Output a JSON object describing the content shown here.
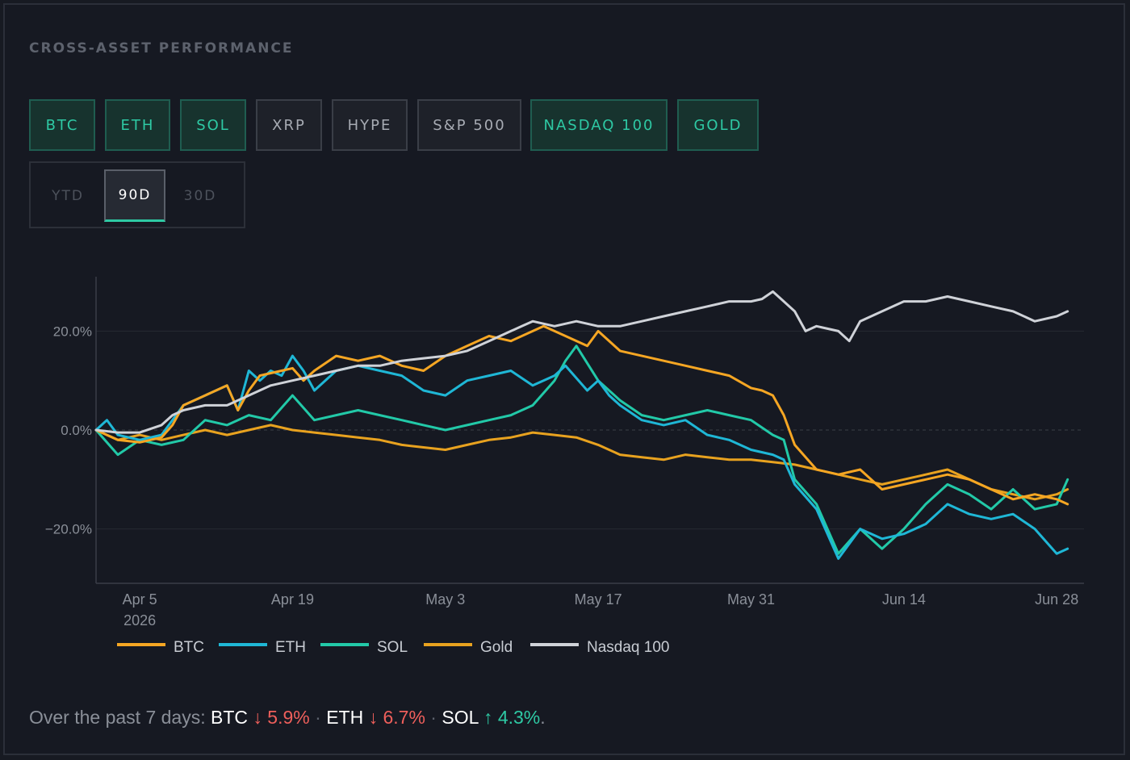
{
  "title": "CROSS-ASSET PERFORMANCE",
  "asset_toggles": [
    {
      "label": "BTC",
      "active": true
    },
    {
      "label": "ETH",
      "active": true
    },
    {
      "label": "SOL",
      "active": true
    },
    {
      "label": "XRP",
      "active": false
    },
    {
      "label": "HYPE",
      "active": false
    },
    {
      "label": "S&P 500",
      "active": false
    },
    {
      "label": "NASDAQ 100",
      "active": true
    },
    {
      "label": "GOLD",
      "active": true
    }
  ],
  "range_tabs": [
    {
      "label": "YTD",
      "active": false
    },
    {
      "label": "90D",
      "active": true
    },
    {
      "label": "30D",
      "active": false
    }
  ],
  "colors": {
    "accent": "#2ec9a4",
    "down": "#ee5f5b",
    "up": "#2ec9a4"
  },
  "chart_data": {
    "type": "line",
    "ylim": [
      -31,
      31
    ],
    "yticks": [
      20,
      0,
      -20
    ],
    "ytick_labels": [
      "20.0%",
      "0.0%",
      "−20.0%"
    ],
    "xtick_labels": [
      {
        "x": 4,
        "lines": [
          "Apr 5",
          "2026"
        ]
      },
      {
        "x": 18,
        "lines": [
          "Apr 19"
        ]
      },
      {
        "x": 32,
        "lines": [
          "May 3"
        ]
      },
      {
        "x": 46,
        "lines": [
          "May 17"
        ]
      },
      {
        "x": 60,
        "lines": [
          "May 31"
        ]
      },
      {
        "x": 74,
        "lines": [
          "Jun 14"
        ]
      },
      {
        "x": 88,
        "lines": [
          "Jun 28"
        ]
      }
    ],
    "x_domain": [
      0,
      90.5
    ],
    "x_unit": "days since Apr 1 2026",
    "series": [
      {
        "name": "BTC",
        "color": "#f5a623",
        "points": [
          [
            0,
            0
          ],
          [
            2,
            -2
          ],
          [
            4,
            -2.5
          ],
          [
            6,
            -1.5
          ],
          [
            7,
            1
          ],
          [
            8,
            5
          ],
          [
            10,
            7
          ],
          [
            12,
            9
          ],
          [
            13,
            4
          ],
          [
            14,
            8
          ],
          [
            15,
            11
          ],
          [
            16,
            11.5
          ],
          [
            17,
            12
          ],
          [
            18,
            12.5
          ],
          [
            19,
            10
          ],
          [
            20,
            12
          ],
          [
            22,
            15
          ],
          [
            24,
            14
          ],
          [
            26,
            15
          ],
          [
            28,
            13
          ],
          [
            30,
            12
          ],
          [
            32,
            15
          ],
          [
            34,
            17
          ],
          [
            36,
            19
          ],
          [
            38,
            18
          ],
          [
            40,
            20
          ],
          [
            41,
            21
          ],
          [
            43,
            19
          ],
          [
            45,
            17
          ],
          [
            46,
            20
          ],
          [
            48,
            16
          ],
          [
            50,
            15
          ],
          [
            52,
            14
          ],
          [
            54,
            13
          ],
          [
            56,
            12
          ],
          [
            58,
            11
          ],
          [
            60,
            8.5
          ],
          [
            61,
            8
          ],
          [
            62,
            7
          ],
          [
            63,
            3
          ],
          [
            64,
            -3
          ],
          [
            66,
            -8
          ],
          [
            68,
            -9
          ],
          [
            70,
            -8
          ],
          [
            72,
            -12
          ],
          [
            74,
            -11
          ],
          [
            76,
            -10
          ],
          [
            78,
            -9
          ],
          [
            80,
            -10
          ],
          [
            82,
            -12
          ],
          [
            84,
            -14
          ],
          [
            86,
            -13
          ],
          [
            88,
            -14
          ],
          [
            89,
            -15
          ]
        ]
      },
      {
        "name": "ETH",
        "color": "#1fb7d6",
        "points": [
          [
            0,
            0
          ],
          [
            1,
            2
          ],
          [
            2,
            -1
          ],
          [
            4,
            -2
          ],
          [
            6,
            -1
          ],
          [
            8,
            5
          ],
          [
            10,
            7
          ],
          [
            12,
            9
          ],
          [
            13,
            4
          ],
          [
            14,
            12
          ],
          [
            15,
            10
          ],
          [
            16,
            12
          ],
          [
            17,
            11
          ],
          [
            18,
            15
          ],
          [
            19,
            12
          ],
          [
            20,
            8
          ],
          [
            22,
            12
          ],
          [
            24,
            13
          ],
          [
            26,
            12
          ],
          [
            28,
            11
          ],
          [
            30,
            8
          ],
          [
            32,
            7
          ],
          [
            34,
            10
          ],
          [
            36,
            11
          ],
          [
            38,
            12
          ],
          [
            40,
            9
          ],
          [
            42,
            11
          ],
          [
            43,
            13
          ],
          [
            45,
            8
          ],
          [
            46,
            10
          ],
          [
            47,
            7
          ],
          [
            48,
            5
          ],
          [
            50,
            2
          ],
          [
            52,
            1
          ],
          [
            54,
            2
          ],
          [
            56,
            -1
          ],
          [
            58,
            -2
          ],
          [
            60,
            -4
          ],
          [
            62,
            -5
          ],
          [
            63,
            -6
          ],
          [
            64,
            -11
          ],
          [
            66,
            -16
          ],
          [
            68,
            -26
          ],
          [
            70,
            -20
          ],
          [
            72,
            -22
          ],
          [
            74,
            -21
          ],
          [
            76,
            -19
          ],
          [
            78,
            -15
          ],
          [
            80,
            -17
          ],
          [
            82,
            -18
          ],
          [
            84,
            -17
          ],
          [
            86,
            -20
          ],
          [
            88,
            -25
          ],
          [
            89,
            -24
          ]
        ]
      },
      {
        "name": "SOL",
        "color": "#22c9a8",
        "points": [
          [
            0,
            0
          ],
          [
            2,
            -5
          ],
          [
            4,
            -2
          ],
          [
            6,
            -3
          ],
          [
            8,
            -2
          ],
          [
            10,
            2
          ],
          [
            12,
            1
          ],
          [
            14,
            3
          ],
          [
            16,
            2
          ],
          [
            18,
            7
          ],
          [
            20,
            2
          ],
          [
            22,
            3
          ],
          [
            24,
            4
          ],
          [
            26,
            3
          ],
          [
            28,
            2
          ],
          [
            30,
            1
          ],
          [
            32,
            0
          ],
          [
            34,
            1
          ],
          [
            36,
            2
          ],
          [
            38,
            3
          ],
          [
            40,
            5
          ],
          [
            42,
            10
          ],
          [
            43,
            14
          ],
          [
            44,
            17
          ],
          [
            46,
            10
          ],
          [
            48,
            6
          ],
          [
            50,
            3
          ],
          [
            52,
            2
          ],
          [
            54,
            3
          ],
          [
            56,
            4
          ],
          [
            58,
            3
          ],
          [
            60,
            2
          ],
          [
            62,
            -1
          ],
          [
            63,
            -2
          ],
          [
            64,
            -10
          ],
          [
            66,
            -15
          ],
          [
            68,
            -25
          ],
          [
            70,
            -20
          ],
          [
            72,
            -24
          ],
          [
            74,
            -20
          ],
          [
            76,
            -15
          ],
          [
            78,
            -11
          ],
          [
            80,
            -13
          ],
          [
            82,
            -16
          ],
          [
            84,
            -12
          ],
          [
            86,
            -16
          ],
          [
            88,
            -15
          ],
          [
            89,
            -10
          ]
        ]
      },
      {
        "name": "Gold",
        "color": "#e8a21f",
        "points": [
          [
            0,
            0
          ],
          [
            2,
            -2
          ],
          [
            4,
            -1
          ],
          [
            6,
            -2
          ],
          [
            8,
            -1
          ],
          [
            10,
            0
          ],
          [
            12,
            -1
          ],
          [
            14,
            0
          ],
          [
            16,
            1
          ],
          [
            18,
            0
          ],
          [
            20,
            -0.5
          ],
          [
            22,
            -1
          ],
          [
            24,
            -1.5
          ],
          [
            26,
            -2
          ],
          [
            28,
            -3
          ],
          [
            30,
            -3.5
          ],
          [
            32,
            -4
          ],
          [
            34,
            -3
          ],
          [
            36,
            -2
          ],
          [
            38,
            -1.5
          ],
          [
            40,
            -0.5
          ],
          [
            42,
            -1
          ],
          [
            44,
            -1.5
          ],
          [
            46,
            -3
          ],
          [
            48,
            -5
          ],
          [
            50,
            -5.5
          ],
          [
            52,
            -6
          ],
          [
            54,
            -5
          ],
          [
            56,
            -5.5
          ],
          [
            58,
            -6
          ],
          [
            60,
            -6
          ],
          [
            62,
            -6.5
          ],
          [
            64,
            -7
          ],
          [
            66,
            -8
          ],
          [
            68,
            -9
          ],
          [
            70,
            -10
          ],
          [
            72,
            -11
          ],
          [
            74,
            -10
          ],
          [
            76,
            -9
          ],
          [
            78,
            -8
          ],
          [
            80,
            -10
          ],
          [
            82,
            -12
          ],
          [
            84,
            -13
          ],
          [
            86,
            -14
          ],
          [
            88,
            -13
          ],
          [
            89,
            -12
          ]
        ]
      },
      {
        "name": "Nasdaq 100",
        "color": "#cfd2d8",
        "points": [
          [
            0,
            0
          ],
          [
            2,
            -0.5
          ],
          [
            4,
            -0.5
          ],
          [
            6,
            1
          ],
          [
            7,
            3
          ],
          [
            8,
            4
          ],
          [
            10,
            5
          ],
          [
            12,
            5
          ],
          [
            14,
            7
          ],
          [
            16,
            9
          ],
          [
            18,
            10
          ],
          [
            20,
            11
          ],
          [
            22,
            12
          ],
          [
            24,
            13
          ],
          [
            26,
            13
          ],
          [
            28,
            14
          ],
          [
            30,
            14.5
          ],
          [
            32,
            15
          ],
          [
            34,
            16
          ],
          [
            36,
            18
          ],
          [
            38,
            20
          ],
          [
            39,
            21
          ],
          [
            40,
            22
          ],
          [
            42,
            21
          ],
          [
            44,
            22
          ],
          [
            46,
            21
          ],
          [
            48,
            21
          ],
          [
            50,
            22
          ],
          [
            52,
            23
          ],
          [
            54,
            24
          ],
          [
            56,
            25
          ],
          [
            58,
            26
          ],
          [
            60,
            26
          ],
          [
            61,
            26.5
          ],
          [
            62,
            28
          ],
          [
            63,
            26
          ],
          [
            64,
            24
          ],
          [
            65,
            20
          ],
          [
            66,
            21
          ],
          [
            68,
            20
          ],
          [
            69,
            18
          ],
          [
            70,
            22
          ],
          [
            72,
            24
          ],
          [
            74,
            26
          ],
          [
            76,
            26
          ],
          [
            78,
            27
          ],
          [
            80,
            26
          ],
          [
            82,
            25
          ],
          [
            84,
            24
          ],
          [
            86,
            22
          ],
          [
            88,
            23
          ],
          [
            89,
            24
          ]
        ]
      }
    ]
  },
  "footer": {
    "prefix": "Over the past 7 days: ",
    "items": [
      {
        "asset": "BTC",
        "arrow": "↓",
        "change": "5.9%",
        "dir": "down"
      },
      {
        "asset": "ETH",
        "arrow": "↓",
        "change": "6.7%",
        "dir": "down"
      },
      {
        "asset": "SOL",
        "arrow": "↑",
        "change": "4.3%",
        "dir": "up"
      }
    ],
    "separator": "·",
    "suffix": "."
  }
}
